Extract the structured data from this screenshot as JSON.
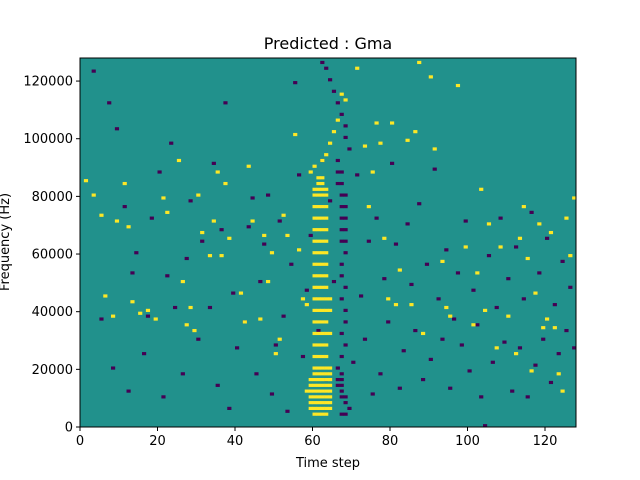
{
  "chart_data": {
    "type": "heatmap",
    "title": "Predicted : Gma",
    "xlabel": "Time step",
    "ylabel": "Frequency (Hz)",
    "xlim": [
      0,
      128
    ],
    "ylim": [
      0,
      128000
    ],
    "x_ticks": [
      0,
      20,
      40,
      60,
      80,
      100,
      120
    ],
    "y_ticks": [
      0,
      20000,
      40000,
      60000,
      80000,
      100000,
      120000
    ],
    "x_tick_labels": [
      "0",
      "20",
      "40",
      "60",
      "80",
      "100",
      "120"
    ],
    "y_tick_labels": [
      "0",
      "20000",
      "40000",
      "60000",
      "80000",
      "100000",
      "120000"
    ],
    "grid": false,
    "colors": {
      "background": "#21918c",
      "high": "#fde725",
      "low": "#440154"
    },
    "rows": 128,
    "columns": 128,
    "value_levels": {
      "low": 0,
      "mid": 0.5,
      "high": 1
    },
    "cells_high": [
      [
        60,
        4
      ],
      [
        61,
        4
      ],
      [
        62,
        4
      ],
      [
        63,
        4
      ],
      [
        59,
        6
      ],
      [
        60,
        6
      ],
      [
        61,
        6
      ],
      [
        62,
        6
      ],
      [
        63,
        6
      ],
      [
        64,
        6
      ],
      [
        59,
        8
      ],
      [
        60,
        8
      ],
      [
        61,
        8
      ],
      [
        62,
        8
      ],
      [
        63,
        8
      ],
      [
        64,
        8
      ],
      [
        59,
        10
      ],
      [
        60,
        10
      ],
      [
        61,
        10
      ],
      [
        62,
        10
      ],
      [
        63,
        10
      ],
      [
        64,
        10
      ],
      [
        58,
        12
      ],
      [
        59,
        12
      ],
      [
        60,
        12
      ],
      [
        61,
        12
      ],
      [
        62,
        12
      ],
      [
        63,
        12
      ],
      [
        64,
        12
      ],
      [
        59,
        14
      ],
      [
        60,
        14
      ],
      [
        61,
        14
      ],
      [
        62,
        14
      ],
      [
        63,
        14
      ],
      [
        64,
        14
      ],
      [
        59,
        16
      ],
      [
        60,
        16
      ],
      [
        61,
        16
      ],
      [
        62,
        16
      ],
      [
        63,
        16
      ],
      [
        64,
        16
      ],
      [
        60,
        18
      ],
      [
        61,
        18
      ],
      [
        62,
        18
      ],
      [
        63,
        18
      ],
      [
        64,
        18
      ],
      [
        60,
        20
      ],
      [
        61,
        20
      ],
      [
        62,
        20
      ],
      [
        63,
        20
      ],
      [
        64,
        20
      ],
      [
        60,
        24
      ],
      [
        61,
        24
      ],
      [
        62,
        24
      ],
      [
        63,
        24
      ],
      [
        60,
        28
      ],
      [
        61,
        28
      ],
      [
        62,
        28
      ],
      [
        63,
        28
      ],
      [
        60,
        32
      ],
      [
        61,
        32
      ],
      [
        62,
        32
      ],
      [
        63,
        32
      ],
      [
        64,
        32
      ],
      [
        60,
        36
      ],
      [
        61,
        36
      ],
      [
        62,
        36
      ],
      [
        63,
        36
      ],
      [
        60,
        40
      ],
      [
        61,
        40
      ],
      [
        62,
        40
      ],
      [
        63,
        40
      ],
      [
        64,
        40
      ],
      [
        60,
        44
      ],
      [
        61,
        44
      ],
      [
        62,
        44
      ],
      [
        63,
        44
      ],
      [
        64,
        44
      ],
      [
        60,
        48
      ],
      [
        61,
        48
      ],
      [
        62,
        48
      ],
      [
        63,
        48
      ],
      [
        60,
        52
      ],
      [
        61,
        52
      ],
      [
        62,
        52
      ],
      [
        63,
        52
      ],
      [
        60,
        56
      ],
      [
        61,
        56
      ],
      [
        62,
        56
      ],
      [
        63,
        56
      ],
      [
        60,
        60
      ],
      [
        61,
        60
      ],
      [
        62,
        60
      ],
      [
        63,
        60
      ],
      [
        60,
        64
      ],
      [
        61,
        64
      ],
      [
        62,
        64
      ],
      [
        63,
        64
      ],
      [
        60,
        68
      ],
      [
        61,
        68
      ],
      [
        62,
        68
      ],
      [
        63,
        68
      ],
      [
        60,
        72
      ],
      [
        61,
        72
      ],
      [
        62,
        72
      ],
      [
        63,
        72
      ],
      [
        60,
        76
      ],
      [
        61,
        76
      ],
      [
        62,
        76
      ],
      [
        63,
        76
      ],
      [
        60,
        80
      ],
      [
        61,
        80
      ],
      [
        62,
        80
      ],
      [
        63,
        80
      ],
      [
        60,
        82
      ],
      [
        61,
        82
      ],
      [
        62,
        82
      ],
      [
        63,
        82
      ],
      [
        61,
        84
      ],
      [
        62,
        84
      ],
      [
        61,
        86
      ],
      [
        62,
        86
      ],
      [
        62,
        92
      ],
      [
        63,
        94
      ],
      [
        64,
        98
      ],
      [
        65,
        102
      ],
      [
        66,
        106
      ],
      [
        1,
        85
      ],
      [
        3,
        80
      ],
      [
        5,
        73
      ],
      [
        6,
        45
      ],
      [
        8,
        38
      ],
      [
        9,
        71
      ],
      [
        11,
        84
      ],
      [
        12,
        69
      ],
      [
        13,
        43
      ],
      [
        15,
        39
      ],
      [
        17,
        40
      ],
      [
        19,
        37
      ],
      [
        21,
        79
      ],
      [
        22,
        74
      ],
      [
        25,
        92
      ],
      [
        26,
        50
      ],
      [
        27,
        35
      ],
      [
        28,
        41
      ],
      [
        29,
        33
      ],
      [
        30,
        80
      ],
      [
        31,
        67
      ],
      [
        33,
        59
      ],
      [
        34,
        71
      ],
      [
        35,
        88
      ],
      [
        36,
        59
      ],
      [
        37,
        84
      ],
      [
        38,
        65
      ],
      [
        41,
        46
      ],
      [
        42,
        36
      ],
      [
        43,
        90
      ],
      [
        44,
        71
      ],
      [
        46,
        37
      ],
      [
        47,
        66
      ],
      [
        48,
        50
      ],
      [
        49,
        60
      ],
      [
        50,
        25
      ],
      [
        51,
        30
      ],
      [
        52,
        73
      ],
      [
        53,
        66
      ],
      [
        55,
        101
      ],
      [
        56,
        61
      ],
      [
        57,
        44
      ],
      [
        58,
        42
      ],
      [
        59,
        88
      ],
      [
        60,
        90
      ],
      [
        67,
        115
      ],
      [
        68,
        113
      ],
      [
        71,
        124
      ],
      [
        73,
        97
      ],
      [
        74,
        76
      ],
      [
        75,
        88
      ],
      [
        76,
        105
      ],
      [
        77,
        98
      ],
      [
        78,
        65
      ],
      [
        79,
        44
      ],
      [
        80,
        105
      ],
      [
        81,
        42
      ],
      [
        82,
        54
      ],
      [
        84,
        99
      ],
      [
        85,
        42
      ],
      [
        86,
        102
      ],
      [
        87,
        126
      ],
      [
        88,
        32
      ],
      [
        90,
        121
      ],
      [
        91,
        96
      ],
      [
        93,
        57
      ],
      [
        94,
        41
      ],
      [
        95,
        38
      ],
      [
        97,
        118
      ],
      [
        99,
        62
      ],
      [
        101,
        35
      ],
      [
        102,
        53
      ],
      [
        103,
        82
      ],
      [
        104,
        40
      ],
      [
        105,
        70
      ],
      [
        107,
        27
      ],
      [
        108,
        62
      ],
      [
        110,
        38
      ],
      [
        112,
        25
      ],
      [
        113,
        65
      ],
      [
        114,
        76
      ],
      [
        115,
        58
      ],
      [
        116,
        19
      ],
      [
        117,
        46
      ],
      [
        118,
        70
      ],
      [
        119,
        34
      ],
      [
        120,
        37
      ],
      [
        121,
        67
      ],
      [
        122,
        34
      ],
      [
        123,
        18
      ],
      [
        124,
        12
      ],
      [
        125,
        72
      ],
      [
        126,
        59
      ],
      [
        127,
        79
      ]
    ],
    "cells_low": [
      [
        67,
        4
      ],
      [
        68,
        4
      ],
      [
        69,
        6
      ],
      [
        68,
        8
      ],
      [
        67,
        10
      ],
      [
        68,
        10
      ],
      [
        67,
        12
      ],
      [
        66,
        14
      ],
      [
        67,
        14
      ],
      [
        66,
        16
      ],
      [
        67,
        16
      ],
      [
        67,
        18
      ],
      [
        66,
        20
      ],
      [
        67,
        24
      ],
      [
        68,
        28
      ],
      [
        67,
        32
      ],
      [
        68,
        36
      ],
      [
        68,
        40
      ],
      [
        67,
        44
      ],
      [
        68,
        48
      ],
      [
        67,
        52
      ],
      [
        67,
        56
      ],
      [
        68,
        60
      ],
      [
        67,
        64
      ],
      [
        68,
        64
      ],
      [
        67,
        68
      ],
      [
        68,
        68
      ],
      [
        67,
        72
      ],
      [
        68,
        72
      ],
      [
        67,
        76
      ],
      [
        68,
        76
      ],
      [
        67,
        80
      ],
      [
        68,
        80
      ],
      [
        66,
        84
      ],
      [
        67,
        84
      ],
      [
        66,
        88
      ],
      [
        67,
        88
      ],
      [
        66,
        92
      ],
      [
        69,
        96
      ],
      [
        68,
        100
      ],
      [
        68,
        104
      ],
      [
        67,
        108
      ],
      [
        66,
        112
      ],
      [
        65,
        116
      ],
      [
        64,
        120
      ],
      [
        63,
        124
      ],
      [
        62,
        126
      ],
      [
        3,
        123
      ],
      [
        5,
        37
      ],
      [
        7,
        112
      ],
      [
        8,
        20
      ],
      [
        9,
        103
      ],
      [
        11,
        76
      ],
      [
        12,
        12
      ],
      [
        13,
        53
      ],
      [
        14,
        60
      ],
      [
        16,
        25
      ],
      [
        17,
        38
      ],
      [
        18,
        72
      ],
      [
        20,
        88
      ],
      [
        21,
        10
      ],
      [
        22,
        52
      ],
      [
        23,
        98
      ],
      [
        24,
        41
      ],
      [
        26,
        18
      ],
      [
        27,
        58
      ],
      [
        28,
        78
      ],
      [
        30,
        30
      ],
      [
        31,
        64
      ],
      [
        33,
        41
      ],
      [
        34,
        91
      ],
      [
        35,
        14
      ],
      [
        36,
        68
      ],
      [
        37,
        112
      ],
      [
        38,
        6
      ],
      [
        39,
        46
      ],
      [
        40,
        27
      ],
      [
        42,
        36
      ],
      [
        43,
        69
      ],
      [
        44,
        79
      ],
      [
        45,
        18
      ],
      [
        46,
        50
      ],
      [
        47,
        63
      ],
      [
        48,
        80
      ],
      [
        49,
        11
      ],
      [
        50,
        28
      ],
      [
        51,
        71
      ],
      [
        52,
        38
      ],
      [
        53,
        5
      ],
      [
        54,
        56
      ],
      [
        55,
        119
      ],
      [
        56,
        87
      ],
      [
        57,
        24
      ],
      [
        58,
        47
      ],
      [
        59,
        66
      ],
      [
        61,
        33
      ],
      [
        62,
        92
      ],
      [
        63,
        16
      ],
      [
        64,
        78
      ],
      [
        65,
        50
      ],
      [
        70,
        22
      ],
      [
        71,
        87
      ],
      [
        72,
        45
      ],
      [
        73,
        30
      ],
      [
        74,
        64
      ],
      [
        75,
        11
      ],
      [
        76,
        72
      ],
      [
        77,
        18
      ],
      [
        78,
        51
      ],
      [
        79,
        36
      ],
      [
        80,
        91
      ],
      [
        81,
        63
      ],
      [
        82,
        13
      ],
      [
        83,
        26
      ],
      [
        84,
        70
      ],
      [
        85,
        49
      ],
      [
        86,
        33
      ],
      [
        87,
        77
      ],
      [
        88,
        16
      ],
      [
        89,
        56
      ],
      [
        90,
        23
      ],
      [
        91,
        89
      ],
      [
        92,
        44
      ],
      [
        93,
        30
      ],
      [
        94,
        61
      ],
      [
        95,
        13
      ],
      [
        96,
        37
      ],
      [
        97,
        53
      ],
      [
        98,
        28
      ],
      [
        99,
        71
      ],
      [
        100,
        19
      ],
      [
        101,
        47
      ],
      [
        102,
        35
      ],
      [
        103,
        10
      ],
      [
        104,
        0
      ],
      [
        105,
        59
      ],
      [
        106,
        22
      ],
      [
        107,
        41
      ],
      [
        108,
        72
      ],
      [
        109,
        29
      ],
      [
        110,
        51
      ],
      [
        111,
        12
      ],
      [
        112,
        62
      ],
      [
        113,
        27
      ],
      [
        114,
        44
      ],
      [
        115,
        10
      ],
      [
        116,
        74
      ],
      [
        117,
        21
      ],
      [
        118,
        53
      ],
      [
        119,
        30
      ],
      [
        120,
        65
      ],
      [
        121,
        15
      ],
      [
        122,
        42
      ],
      [
        123,
        25
      ],
      [
        124,
        57
      ],
      [
        125,
        33
      ],
      [
        126,
        48
      ],
      [
        127,
        27
      ]
    ]
  }
}
